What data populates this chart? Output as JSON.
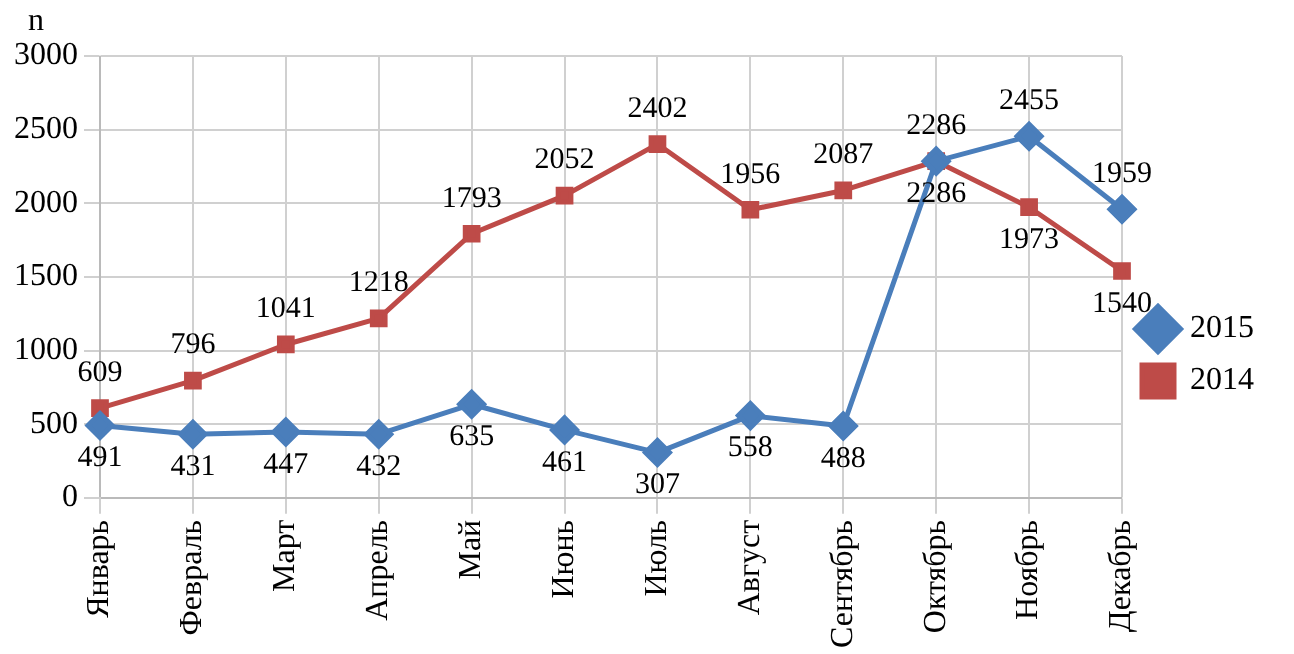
{
  "chart_data": {
    "type": "line",
    "ylabel": "n",
    "categories": [
      "Январь",
      "Февраль",
      "Март",
      "Апрель",
      "Май",
      "Июнь",
      "Июль",
      "Август",
      "Сентябрь",
      "Октябрь",
      "Ноябрь",
      "Декабрь"
    ],
    "series": [
      {
        "name": "2015",
        "color": "#4a7ebb",
        "marker": "diamond",
        "values": [
          491,
          431,
          447,
          432,
          635,
          461,
          307,
          558,
          488,
          2286,
          2455,
          1959
        ]
      },
      {
        "name": "2014",
        "color": "#be4b48",
        "marker": "square",
        "values": [
          609,
          796,
          1041,
          1218,
          1793,
          2052,
          2402,
          1956,
          2087,
          2286,
          1973,
          1540
        ]
      }
    ],
    "ylim": [
      0,
      3000
    ],
    "yticks": [
      0,
      500,
      1000,
      1500,
      2000,
      2500,
      3000
    ],
    "grid": true,
    "legend": "right",
    "data_labels": true,
    "line_style": "solid"
  }
}
